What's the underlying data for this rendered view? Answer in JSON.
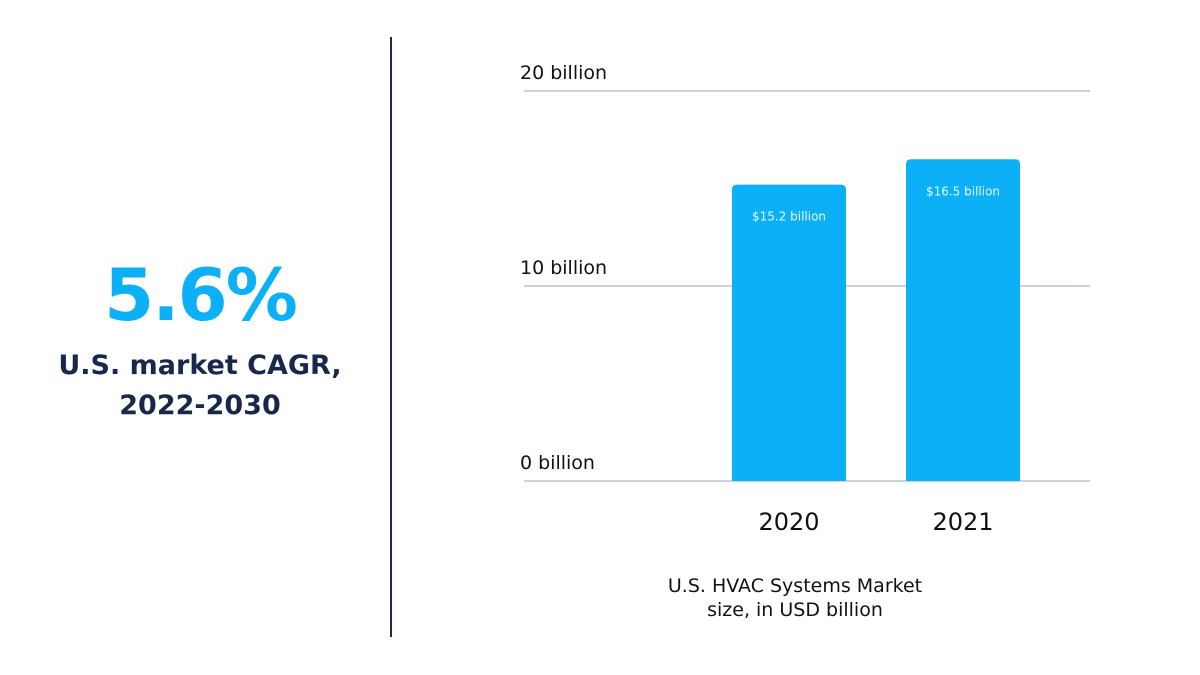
{
  "stat": {
    "value": "5.6%",
    "caption_line1": "U.S. market CAGR,",
    "caption_line2": "2022-2030"
  },
  "chart_data": {
    "type": "bar",
    "categories": [
      "2020",
      "2021"
    ],
    "values": [
      15.2,
      16.5
    ],
    "data_labels": [
      "$15.2 billion",
      "$16.5 billion"
    ],
    "ylim": [
      0,
      20
    ],
    "yticks": [
      {
        "value": 0,
        "label": "0 billion"
      },
      {
        "value": 10,
        "label": "10 billion"
      },
      {
        "value": 20,
        "label": "20 billion"
      }
    ],
    "grid": true,
    "bar_color": "#0bb0f7",
    "caption_line1": "U.S. HVAC Systems Market",
    "caption_line2": "size, in USD billion"
  }
}
